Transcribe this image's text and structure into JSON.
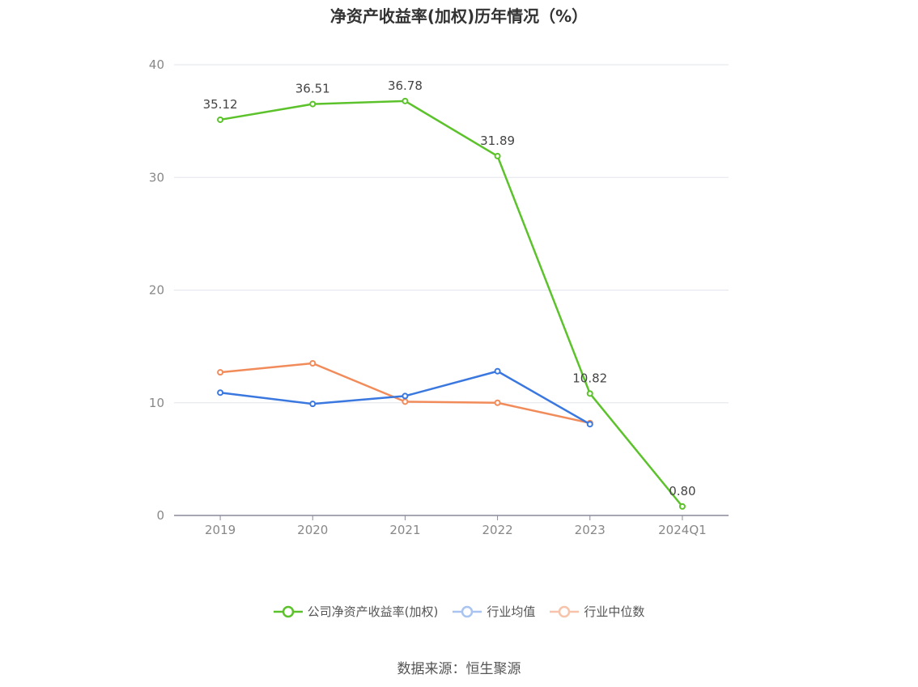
{
  "chart_data": {
    "type": "line",
    "title": "净资产收益率(加权)历年情况（%）",
    "categories": [
      "2019",
      "2020",
      "2021",
      "2022",
      "2023",
      "2024Q1"
    ],
    "ylim": [
      0,
      40
    ],
    "yticks": [
      0,
      10,
      20,
      30,
      40
    ],
    "grid": true,
    "legend_position": "bottom",
    "series": [
      {
        "name": "公司净资产收益率(加权)",
        "color": "#5cc22b",
        "values": [
          35.12,
          36.51,
          36.78,
          31.89,
          10.82,
          0.8
        ],
        "labels": [
          "35.12",
          "36.51",
          "36.78",
          "31.89",
          "10.82",
          "0.80"
        ]
      },
      {
        "name": "行业均值",
        "color": "#3a78e0",
        "values": [
          10.9,
          9.9,
          10.6,
          12.8,
          8.1,
          null
        ]
      },
      {
        "name": "行业中位数",
        "color": "#f28b5a",
        "values": [
          12.7,
          13.5,
          10.1,
          10.0,
          8.2,
          null
        ]
      }
    ]
  },
  "legend": {
    "items": [
      {
        "label": "公司净资产收益率(加权)",
        "color": "#5cc22b",
        "swatch_color": "#5cc22b"
      },
      {
        "label": "行业均值",
        "color": "#3a78e0",
        "swatch_color": "#a9c4f0"
      },
      {
        "label": "行业中位数",
        "color": "#f28b5a",
        "swatch_color": "#f7c3aa"
      }
    ]
  },
  "source": "数据来源：恒生聚源"
}
